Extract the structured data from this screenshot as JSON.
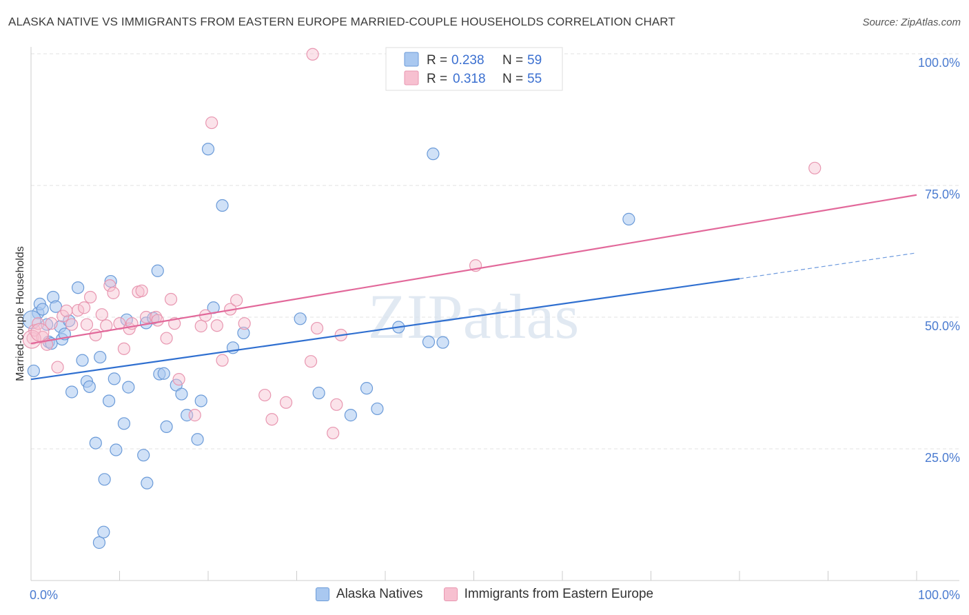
{
  "title": "ALASKA NATIVE VS IMMIGRANTS FROM EASTERN EUROPE MARRIED-COUPLE HOUSEHOLDS CORRELATION CHART",
  "source": "Source: ZipAtlas.com",
  "watermark": "ZIPatlas",
  "colors": {
    "blue_fill": "#a9c8f0",
    "blue_stroke": "#6a9ad8",
    "blue_line": "#2f6fd0",
    "pink_fill": "#f7c0d0",
    "pink_stroke": "#e896b0",
    "pink_line": "#e2689a"
  },
  "legend": {
    "rows": [
      {
        "r_label": "R =",
        "r_value": "0.238",
        "n_label": "N =",
        "n_value": "59"
      },
      {
        "r_label": "R =",
        "r_value": "0.318",
        "n_label": "N =",
        "n_value": "55"
      }
    ]
  },
  "bottom_legend": {
    "series1": "Alaska Natives",
    "series2": "Immigrants from Eastern Europe"
  },
  "chart_data": {
    "type": "scatter",
    "title": "ALASKA NATIVE VS IMMIGRANTS FROM EASTERN EUROPE MARRIED-COUPLE HOUSEHOLDS CORRELATION CHART",
    "xlabel": "",
    "ylabel": "Married-couple Households",
    "xlim": [
      0,
      100
    ],
    "ylim": [
      0,
      100
    ],
    "x_tick_labels": [
      "0.0%",
      "100.0%"
    ],
    "y_ticks": [
      25,
      50,
      75,
      100
    ],
    "y_tick_labels": [
      "25.0%",
      "50.0%",
      "75.0%",
      "100.0%"
    ],
    "grid": true,
    "legend_position": "top-center",
    "series": [
      {
        "name": "Alaska Natives",
        "r": 0.238,
        "n": 59,
        "trend": {
          "x0": 0,
          "y0": 38.2,
          "x1": 80,
          "y1": 57.3,
          "dashed_to": 100,
          "dashed_y": 62.2
        },
        "points": [
          [
            0.3,
            39.8
          ],
          [
            0.8,
            50.8
          ],
          [
            1.0,
            52.5
          ],
          [
            1.3,
            51.5
          ],
          [
            1.8,
            48.6
          ],
          [
            2.0,
            45.3
          ],
          [
            2.3,
            45.0
          ],
          [
            2.5,
            53.8
          ],
          [
            2.8,
            52.0
          ],
          [
            3.3,
            48.2
          ],
          [
            3.5,
            45.8
          ],
          [
            3.8,
            46.8
          ],
          [
            4.3,
            49.3
          ],
          [
            4.6,
            35.8
          ],
          [
            5.3,
            55.6
          ],
          [
            5.8,
            41.8
          ],
          [
            6.3,
            37.8
          ],
          [
            6.6,
            36.8
          ],
          [
            7.3,
            26.1
          ],
          [
            7.7,
            7.2
          ],
          [
            7.8,
            42.4
          ],
          [
            8.2,
            9.2
          ],
          [
            8.3,
            19.2
          ],
          [
            8.8,
            34.1
          ],
          [
            9.0,
            56.8
          ],
          [
            9.4,
            38.3
          ],
          [
            9.6,
            24.8
          ],
          [
            10.5,
            29.8
          ],
          [
            10.8,
            49.5
          ],
          [
            11.0,
            36.7
          ],
          [
            12.7,
            23.8
          ],
          [
            13.0,
            48.9
          ],
          [
            13.1,
            18.5
          ],
          [
            13.8,
            49.8
          ],
          [
            14.3,
            58.8
          ],
          [
            14.5,
            39.2
          ],
          [
            15.0,
            39.3
          ],
          [
            15.3,
            29.2
          ],
          [
            16.4,
            37.1
          ],
          [
            17.0,
            35.4
          ],
          [
            17.6,
            31.4
          ],
          [
            18.8,
            26.8
          ],
          [
            19.2,
            34.1
          ],
          [
            20.0,
            81.9
          ],
          [
            20.6,
            51.8
          ],
          [
            21.6,
            71.2
          ],
          [
            22.8,
            44.2
          ],
          [
            24.0,
            47.0
          ],
          [
            30.4,
            49.7
          ],
          [
            32.5,
            35.6
          ],
          [
            36.1,
            31.4
          ],
          [
            37.9,
            36.5
          ],
          [
            39.1,
            32.6
          ],
          [
            41.5,
            48.1
          ],
          [
            44.9,
            45.3
          ],
          [
            45.4,
            81.0
          ],
          [
            46.5,
            45.2
          ],
          [
            67.5,
            68.6
          ],
          [
            0.1,
            49.5
          ]
        ]
      },
      {
        "name": "Immigrants from Eastern Europe",
        "r": 0.318,
        "n": 55,
        "trend": {
          "x0": 0,
          "y0": 45.0,
          "x1": 100,
          "y1": 73.2
        },
        "points": [
          [
            0.2,
            46.0
          ],
          [
            0.4,
            47.5
          ],
          [
            0.8,
            48.8
          ],
          [
            1.3,
            46.2
          ],
          [
            1.8,
            44.8
          ],
          [
            2.3,
            48.8
          ],
          [
            3.0,
            40.5
          ],
          [
            3.6,
            50.2
          ],
          [
            4.0,
            51.2
          ],
          [
            4.6,
            48.6
          ],
          [
            5.3,
            51.3
          ],
          [
            6.0,
            51.8
          ],
          [
            6.3,
            48.6
          ],
          [
            6.7,
            53.8
          ],
          [
            7.3,
            46.6
          ],
          [
            8.0,
            50.5
          ],
          [
            8.5,
            48.4
          ],
          [
            8.9,
            56.0
          ],
          [
            9.3,
            54.6
          ],
          [
            10.0,
            48.8
          ],
          [
            10.5,
            44.0
          ],
          [
            11.1,
            47.8
          ],
          [
            11.4,
            48.8
          ],
          [
            12.1,
            54.8
          ],
          [
            12.5,
            55.0
          ],
          [
            13.0,
            50.0
          ],
          [
            14.1,
            50.0
          ],
          [
            14.3,
            49.4
          ],
          [
            15.3,
            46.0
          ],
          [
            15.8,
            53.4
          ],
          [
            16.2,
            48.8
          ],
          [
            16.7,
            38.2
          ],
          [
            18.5,
            31.4
          ],
          [
            19.2,
            48.3
          ],
          [
            19.7,
            50.3
          ],
          [
            20.4,
            86.9
          ],
          [
            21.0,
            48.4
          ],
          [
            21.6,
            41.8
          ],
          [
            22.5,
            51.5
          ],
          [
            23.2,
            53.2
          ],
          [
            24.1,
            48.8
          ],
          [
            26.4,
            35.2
          ],
          [
            27.2,
            30.6
          ],
          [
            28.8,
            33.8
          ],
          [
            31.6,
            41.6
          ],
          [
            31.8,
            99.9
          ],
          [
            32.3,
            47.9
          ],
          [
            34.1,
            28.0
          ],
          [
            34.5,
            33.4
          ],
          [
            35.0,
            46.6
          ],
          [
            47.8,
            99.2
          ],
          [
            50.2,
            59.8
          ],
          [
            88.5,
            78.3
          ],
          [
            0.1,
            45.8
          ],
          [
            1.0,
            47.1
          ]
        ]
      }
    ]
  }
}
